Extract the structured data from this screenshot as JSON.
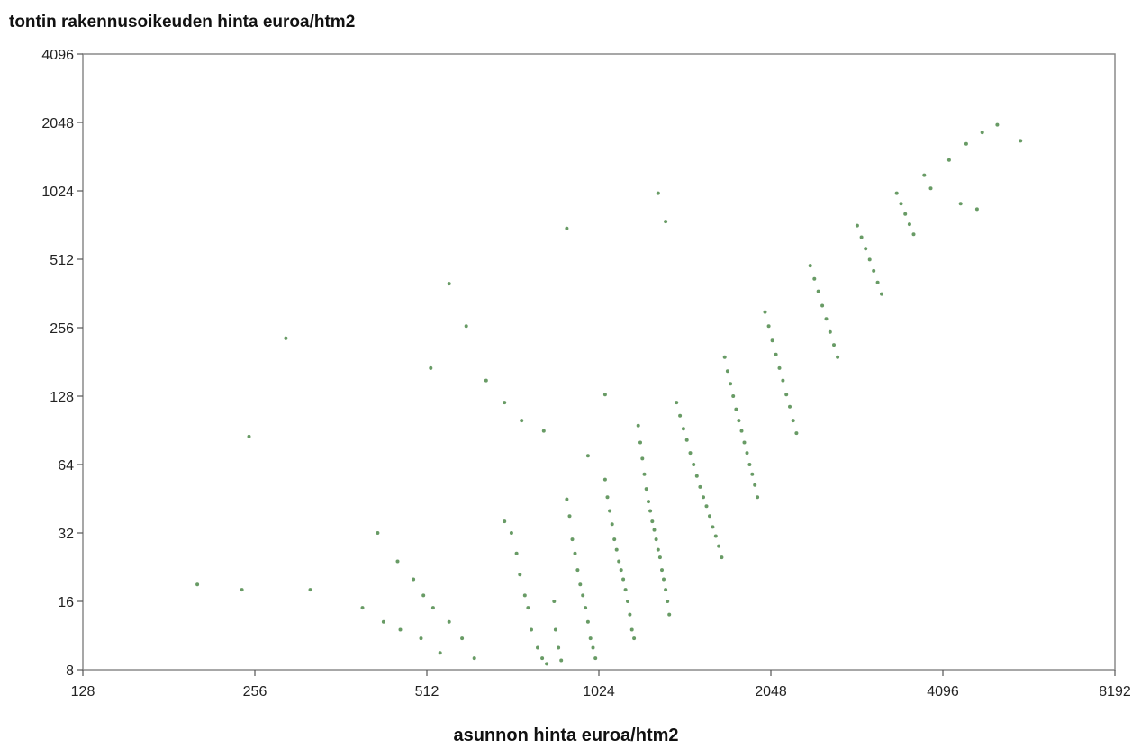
{
  "chart_data": {
    "type": "scatter",
    "title": "",
    "xlabel": "asunnon hinta euroa/htm2",
    "ylabel": "tontin rakennusoikeuden hinta euroa/htm2",
    "x_scale": "log2",
    "y_scale": "log2",
    "xlim": [
      128,
      8192
    ],
    "ylim": [
      8,
      4096
    ],
    "x_ticks": [
      "128",
      "256",
      "512",
      "1024",
      "2048",
      "4096",
      "8192"
    ],
    "y_ticks": [
      "4096",
      "2048",
      "1024",
      "512",
      "256",
      "128",
      "64",
      "32",
      "16",
      "8"
    ],
    "grid": false,
    "legend": "none",
    "point_color": "#4e8a4a",
    "series": [
      {
        "points": [
          [
            203,
            19
          ],
          [
            243,
            18
          ],
          [
            320,
            18
          ],
          [
            395,
            15
          ],
          [
            430,
            13
          ],
          [
            460,
            12
          ],
          [
            500,
            11
          ],
          [
            540,
            9.5
          ],
          [
            420,
            32
          ],
          [
            455,
            24
          ],
          [
            485,
            20
          ],
          [
            505,
            17
          ],
          [
            525,
            15
          ],
          [
            560,
            13
          ],
          [
            590,
            11
          ],
          [
            620,
            9
          ],
          [
            700,
            36
          ],
          [
            720,
            32
          ],
          [
            735,
            26
          ],
          [
            745,
            21
          ],
          [
            760,
            17
          ],
          [
            770,
            15
          ],
          [
            780,
            12
          ],
          [
            800,
            10
          ],
          [
            815,
            9
          ],
          [
            830,
            8.5
          ],
          [
            855,
            16
          ],
          [
            860,
            12
          ],
          [
            870,
            10
          ],
          [
            880,
            8.8
          ],
          [
            900,
            45
          ],
          [
            910,
            38
          ],
          [
            920,
            30
          ],
          [
            930,
            26
          ],
          [
            940,
            22
          ],
          [
            950,
            19
          ],
          [
            960,
            17
          ],
          [
            970,
            15
          ],
          [
            980,
            13
          ],
          [
            990,
            11
          ],
          [
            1000,
            10
          ],
          [
            1010,
            9
          ],
          [
            1050,
            55
          ],
          [
            1060,
            46
          ],
          [
            1070,
            40
          ],
          [
            1080,
            35
          ],
          [
            1090,
            30
          ],
          [
            1100,
            27
          ],
          [
            1110,
            24
          ],
          [
            1120,
            22
          ],
          [
            1130,
            20
          ],
          [
            1140,
            18
          ],
          [
            1150,
            16
          ],
          [
            1160,
            14
          ],
          [
            1170,
            12
          ],
          [
            1180,
            11
          ],
          [
            1200,
            95
          ],
          [
            1210,
            80
          ],
          [
            1220,
            68
          ],
          [
            1230,
            58
          ],
          [
            1240,
            50
          ],
          [
            1250,
            44
          ],
          [
            1260,
            40
          ],
          [
            1270,
            36
          ],
          [
            1280,
            33
          ],
          [
            1290,
            30
          ],
          [
            1300,
            27
          ],
          [
            1310,
            25
          ],
          [
            1320,
            22
          ],
          [
            1330,
            20
          ],
          [
            1340,
            18
          ],
          [
            1350,
            16
          ],
          [
            1360,
            14
          ],
          [
            1400,
            120
          ],
          [
            1420,
            105
          ],
          [
            1440,
            92
          ],
          [
            1460,
            82
          ],
          [
            1480,
            72
          ],
          [
            1500,
            64
          ],
          [
            1520,
            57
          ],
          [
            1540,
            51
          ],
          [
            1560,
            46
          ],
          [
            1580,
            42
          ],
          [
            1600,
            38
          ],
          [
            1620,
            34
          ],
          [
            1640,
            31
          ],
          [
            1660,
            28
          ],
          [
            1680,
            25
          ],
          [
            1700,
            190
          ],
          [
            1720,
            165
          ],
          [
            1740,
            145
          ],
          [
            1760,
            128
          ],
          [
            1780,
            112
          ],
          [
            1800,
            100
          ],
          [
            1820,
            90
          ],
          [
            1840,
            80
          ],
          [
            1860,
            72
          ],
          [
            1880,
            64
          ],
          [
            1900,
            58
          ],
          [
            1920,
            52
          ],
          [
            1940,
            46
          ],
          [
            2000,
            300
          ],
          [
            2030,
            260
          ],
          [
            2060,
            225
          ],
          [
            2090,
            195
          ],
          [
            2120,
            170
          ],
          [
            2150,
            150
          ],
          [
            2180,
            130
          ],
          [
            2210,
            115
          ],
          [
            2240,
            100
          ],
          [
            2270,
            88
          ],
          [
            2400,
            480
          ],
          [
            2440,
            420
          ],
          [
            2480,
            370
          ],
          [
            2520,
            320
          ],
          [
            2560,
            280
          ],
          [
            2600,
            245
          ],
          [
            2640,
            215
          ],
          [
            2680,
            190
          ],
          [
            2900,
            720
          ],
          [
            2950,
            640
          ],
          [
            3000,
            570
          ],
          [
            3050,
            510
          ],
          [
            3100,
            455
          ],
          [
            3150,
            405
          ],
          [
            3200,
            360
          ],
          [
            3400,
            1000
          ],
          [
            3460,
            900
          ],
          [
            3520,
            810
          ],
          [
            3580,
            730
          ],
          [
            3640,
            660
          ],
          [
            3800,
            1200
          ],
          [
            3900,
            1050
          ],
          [
            4200,
            1400
          ],
          [
            4500,
            1650
          ],
          [
            4800,
            1850
          ],
          [
            5100,
            2000
          ],
          [
            5600,
            1700
          ],
          [
            4400,
            900
          ],
          [
            4700,
            850
          ],
          [
            1300,
            1000
          ],
          [
            1340,
            750
          ],
          [
            900,
            700
          ],
          [
            560,
            400
          ],
          [
            600,
            260
          ],
          [
            290,
            230
          ],
          [
            250,
            85
          ],
          [
            520,
            170
          ],
          [
            650,
            150
          ],
          [
            700,
            120
          ],
          [
            750,
            100
          ],
          [
            820,
            90
          ],
          [
            980,
            70
          ],
          [
            1050,
            130
          ]
        ]
      }
    ]
  }
}
